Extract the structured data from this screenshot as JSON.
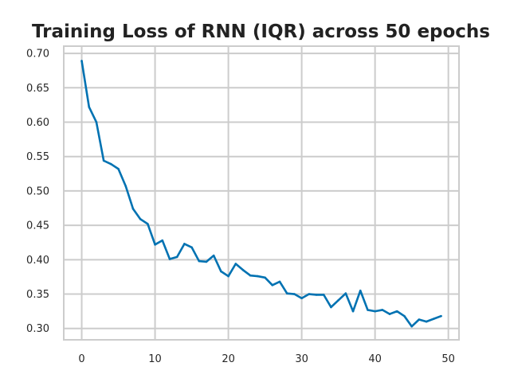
{
  "chart_data": {
    "type": "line",
    "title": "Training Loss of RNN (IQR) across 50 epochs",
    "xlabel": "",
    "ylabel": "",
    "xlim": [
      -2.45,
      51.45
    ],
    "ylim": [
      0.2835,
      0.7105
    ],
    "xticks": [
      0,
      10,
      20,
      30,
      40,
      50
    ],
    "yticks": [
      0.3,
      0.35,
      0.4,
      0.45,
      0.5,
      0.55,
      0.6,
      0.65,
      0.7
    ],
    "grid": true,
    "series": [
      {
        "color": "#0072b2",
        "x": [
          0,
          1,
          2,
          3,
          4,
          5,
          6,
          7,
          8,
          9,
          10,
          11,
          12,
          13,
          14,
          15,
          16,
          17,
          18,
          19,
          20,
          21,
          22,
          23,
          24,
          25,
          26,
          27,
          28,
          29,
          30,
          31,
          32,
          33,
          34,
          35,
          36,
          37,
          38,
          39,
          40,
          41,
          42,
          43,
          44,
          45,
          46,
          47,
          48,
          49
        ],
        "values": [
          0.689,
          0.622,
          0.6,
          0.544,
          0.539,
          0.532,
          0.507,
          0.474,
          0.459,
          0.452,
          0.422,
          0.428,
          0.401,
          0.404,
          0.423,
          0.418,
          0.398,
          0.397,
          0.406,
          0.383,
          0.376,
          0.394,
          0.385,
          0.377,
          0.376,
          0.374,
          0.363,
          0.368,
          0.351,
          0.35,
          0.344,
          0.35,
          0.349,
          0.349,
          0.331,
          0.341,
          0.351,
          0.325,
          0.355,
          0.327,
          0.325,
          0.327,
          0.321,
          0.325,
          0.318,
          0.303,
          0.313,
          0.31,
          0.314,
          0.318
        ]
      }
    ]
  }
}
